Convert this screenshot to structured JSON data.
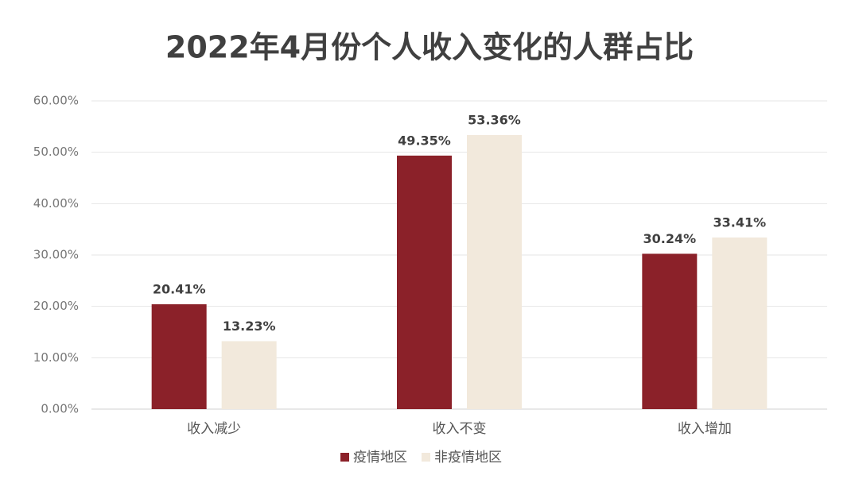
{
  "chart_data": {
    "type": "bar",
    "title": "2022年4月份个人收入变化的人群占比",
    "categories": [
      "收入减少",
      "收入不变",
      "收入增加"
    ],
    "series": [
      {
        "name": "疫情地区",
        "color": "#8b2129",
        "values": [
          20.41,
          49.35,
          30.24
        ],
        "value_labels": [
          "20.41%",
          "49.35%",
          "30.24%"
        ]
      },
      {
        "name": "非疫情地区",
        "color": "#f2e9dc",
        "values": [
          13.23,
          53.36,
          33.41
        ],
        "value_labels": [
          "13.23%",
          "53.36%",
          "33.41%"
        ]
      }
    ],
    "ylim": [
      0,
      60
    ],
    "yticks": [
      {
        "value": 0,
        "label": "0.00%"
      },
      {
        "value": 10,
        "label": "10.00%"
      },
      {
        "value": 20,
        "label": "20.00%"
      },
      {
        "value": 30,
        "label": "30.00%"
      },
      {
        "value": 40,
        "label": "40.00%"
      },
      {
        "value": 50,
        "label": "50.00%"
      },
      {
        "value": 60,
        "label": "60.00%"
      }
    ],
    "grid": true,
    "legend": "bottom"
  }
}
